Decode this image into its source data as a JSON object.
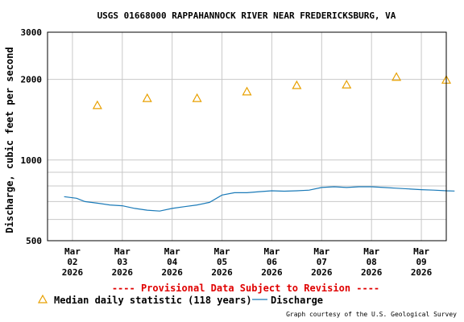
{
  "chart_data": {
    "type": "line",
    "title": "USGS 01668000 RAPPAHANNOCK RIVER NEAR FREDERICKSBURG, VA",
    "ylabel": "Discharge, cubic feet per second",
    "xlabel": "",
    "y_scale": "log",
    "ylim": [
      500,
      3000
    ],
    "y_ticks": [
      "500",
      "1000",
      "2000",
      "3000"
    ],
    "xlim": [
      "2026-03-02",
      "2026-03-09"
    ],
    "x_ticks": [
      {
        "date": "2026-03-02",
        "lines": [
          "Mar",
          "02",
          "2026"
        ]
      },
      {
        "date": "2026-03-03",
        "lines": [
          "Mar",
          "03",
          "2026"
        ]
      },
      {
        "date": "2026-03-04",
        "lines": [
          "Mar",
          "04",
          "2026"
        ]
      },
      {
        "date": "2026-03-05",
        "lines": [
          "Mar",
          "05",
          "2026"
        ]
      },
      {
        "date": "2026-03-06",
        "lines": [
          "Mar",
          "06",
          "2026"
        ]
      },
      {
        "date": "2026-03-07",
        "lines": [
          "Mar",
          "07",
          "2026"
        ]
      },
      {
        "date": "2026-03-08",
        "lines": [
          "Mar",
          "08",
          "2026"
        ]
      },
      {
        "date": "2026-03-09",
        "lines": [
          "Mar",
          "09",
          "2026"
        ]
      }
    ],
    "grid": true,
    "series": [
      {
        "name": "Median daily statistic (118 years)",
        "marker": "triangle",
        "color": "#e8a000",
        "points": [
          {
            "x": "2026-03-02 12:00",
            "y": 1600
          },
          {
            "x": "2026-03-03 12:00",
            "y": 1700
          },
          {
            "x": "2026-03-04 12:00",
            "y": 1700
          },
          {
            "x": "2026-03-05 12:00",
            "y": 1800
          },
          {
            "x": "2026-03-06 12:00",
            "y": 1900
          },
          {
            "x": "2026-03-07 12:00",
            "y": 1910
          },
          {
            "x": "2026-03-08 12:00",
            "y": 2040
          },
          {
            "x": "2026-03-09 12:00",
            "y": 1990
          }
        ]
      },
      {
        "name": "Discharge",
        "marker": "line",
        "color": "#1a7ab8",
        "points": [
          {
            "x": "2026-03-01 20:00",
            "y": 730
          },
          {
            "x": "2026-03-02 02:00",
            "y": 720
          },
          {
            "x": "2026-03-02 06:00",
            "y": 700
          },
          {
            "x": "2026-03-02 12:00",
            "y": 690
          },
          {
            "x": "2026-03-02 18:00",
            "y": 680
          },
          {
            "x": "2026-03-03 00:00",
            "y": 675
          },
          {
            "x": "2026-03-03 06:00",
            "y": 660
          },
          {
            "x": "2026-03-03 12:00",
            "y": 650
          },
          {
            "x": "2026-03-03 18:00",
            "y": 645
          },
          {
            "x": "2026-03-04 00:00",
            "y": 660
          },
          {
            "x": "2026-03-04 06:00",
            "y": 670
          },
          {
            "x": "2026-03-04 12:00",
            "y": 680
          },
          {
            "x": "2026-03-04 18:00",
            "y": 695
          },
          {
            "x": "2026-03-05 00:00",
            "y": 740
          },
          {
            "x": "2026-03-05 06:00",
            "y": 755
          },
          {
            "x": "2026-03-05 12:00",
            "y": 755
          },
          {
            "x": "2026-03-05 18:00",
            "y": 762
          },
          {
            "x": "2026-03-06 00:00",
            "y": 768
          },
          {
            "x": "2026-03-06 06:00",
            "y": 765
          },
          {
            "x": "2026-03-06 12:00",
            "y": 768
          },
          {
            "x": "2026-03-06 18:00",
            "y": 772
          },
          {
            "x": "2026-03-07 00:00",
            "y": 790
          },
          {
            "x": "2026-03-07 06:00",
            "y": 795
          },
          {
            "x": "2026-03-07 12:00",
            "y": 790
          },
          {
            "x": "2026-03-07 18:00",
            "y": 795
          },
          {
            "x": "2026-03-08 00:00",
            "y": 795
          },
          {
            "x": "2026-03-08 06:00",
            "y": 790
          },
          {
            "x": "2026-03-08 12:00",
            "y": 785
          },
          {
            "x": "2026-03-08 18:00",
            "y": 780
          },
          {
            "x": "2026-03-09 00:00",
            "y": 775
          },
          {
            "x": "2026-03-09 06:00",
            "y": 772
          },
          {
            "x": "2026-03-09 12:00",
            "y": 768
          },
          {
            "x": "2026-03-09 16:00",
            "y": 766
          }
        ]
      }
    ],
    "provisional_note": "---- Provisional Data Subject to Revision ----",
    "credit": "Graph courtesy of the U.S. Geological Survey"
  }
}
